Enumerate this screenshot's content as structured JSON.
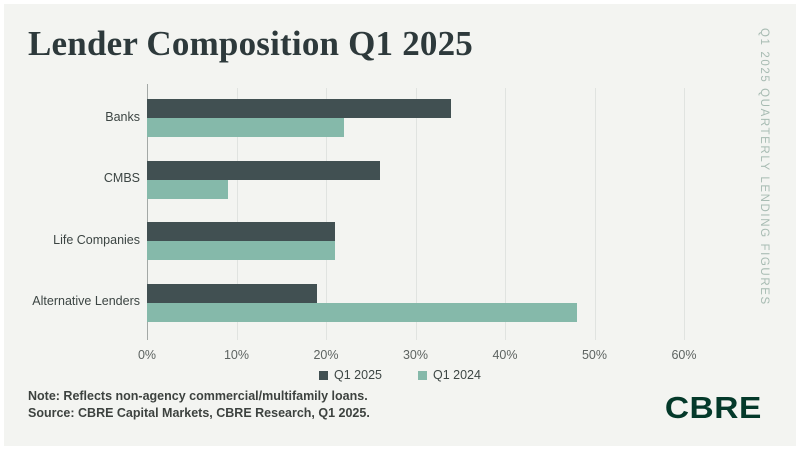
{
  "header": {
    "title": "Lender Composition Q1 2025"
  },
  "side_label": "Q1 2025 QUARTERLY LENDING FIGURES",
  "chart_data": {
    "type": "bar",
    "orientation": "horizontal",
    "title": "Lender Composition Q1 2025",
    "categories": [
      "Banks",
      "CMBS",
      "Life Companies",
      "Alternative Lenders"
    ],
    "series": [
      {
        "name": "Q1 2025",
        "color": "#415052",
        "values": [
          34,
          26,
          21,
          19
        ]
      },
      {
        "name": "Q1 2024",
        "color": "#85b9aa",
        "values": [
          22,
          9,
          21,
          48
        ]
      }
    ],
    "x_ticks": [
      "0%",
      "10%",
      "20%",
      "30%",
      "40%",
      "50%",
      "60%"
    ],
    "xlim": [
      0,
      60
    ],
    "xlabel": "",
    "ylabel": "",
    "grid": true,
    "legend_position": "bottom"
  },
  "notes": {
    "note": "Note: Reflects non-agency commercial/multifamily loans.",
    "source": "Source: CBRE Capital Markets, CBRE Research, Q1 2025."
  },
  "logo": "CBRE",
  "colors": {
    "background": "#f3f4f1",
    "bar_q1_2025": "#415052",
    "bar_q1_2024": "#85b9aa",
    "gridline": "#e0e3e0",
    "axis_line": "#a3a8a6",
    "title_text": "#2d393b",
    "side_label_text": "#a7bbb2",
    "logo_green": "#04392a"
  }
}
